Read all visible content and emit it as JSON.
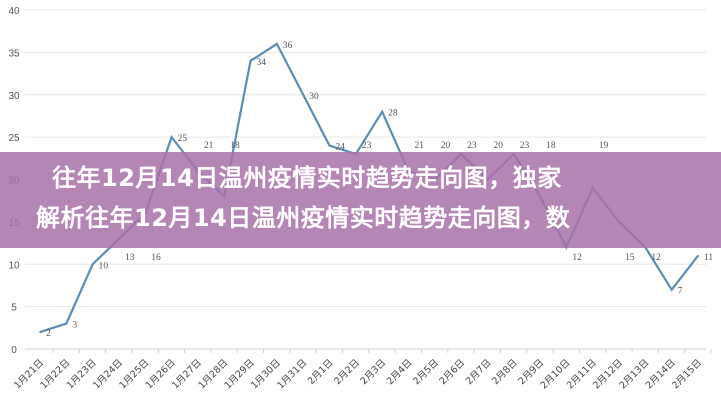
{
  "chart_data": {
    "type": "line",
    "categories": [
      "1月21日",
      "1月22日",
      "1月23日",
      "1月24日",
      "1月25日",
      "1月26日",
      "1月27日",
      "1月28日",
      "1月29日",
      "1月30日",
      "1月31日",
      "2月1日",
      "2月2日",
      "2月3日",
      "2月4日",
      "2月5日",
      "2月6日",
      "2月7日",
      "2月8日",
      "2月9日",
      "2月10日",
      "2月11日",
      "2月12日",
      "2月13日",
      "2月14日",
      "2月15日"
    ],
    "values": [
      2,
      3,
      10,
      13,
      16,
      25,
      21,
      18,
      34,
      36,
      30,
      24,
      23,
      28,
      21,
      20,
      23,
      20,
      23,
      18,
      12,
      19,
      15,
      12,
      7,
      11
    ],
    "ylim": [
      0,
      40
    ],
    "yticks": [
      0,
      5,
      10,
      15,
      20,
      25,
      30,
      35,
      40
    ],
    "grid": true,
    "line_color": "#5b8db8"
  },
  "banner": {
    "line1": "往年12月14日温州疫情实时趋势走向图，独家",
    "line2": "解析往年12月14日温州疫情实时趋势走向图，数",
    "color": "#a870a8"
  }
}
